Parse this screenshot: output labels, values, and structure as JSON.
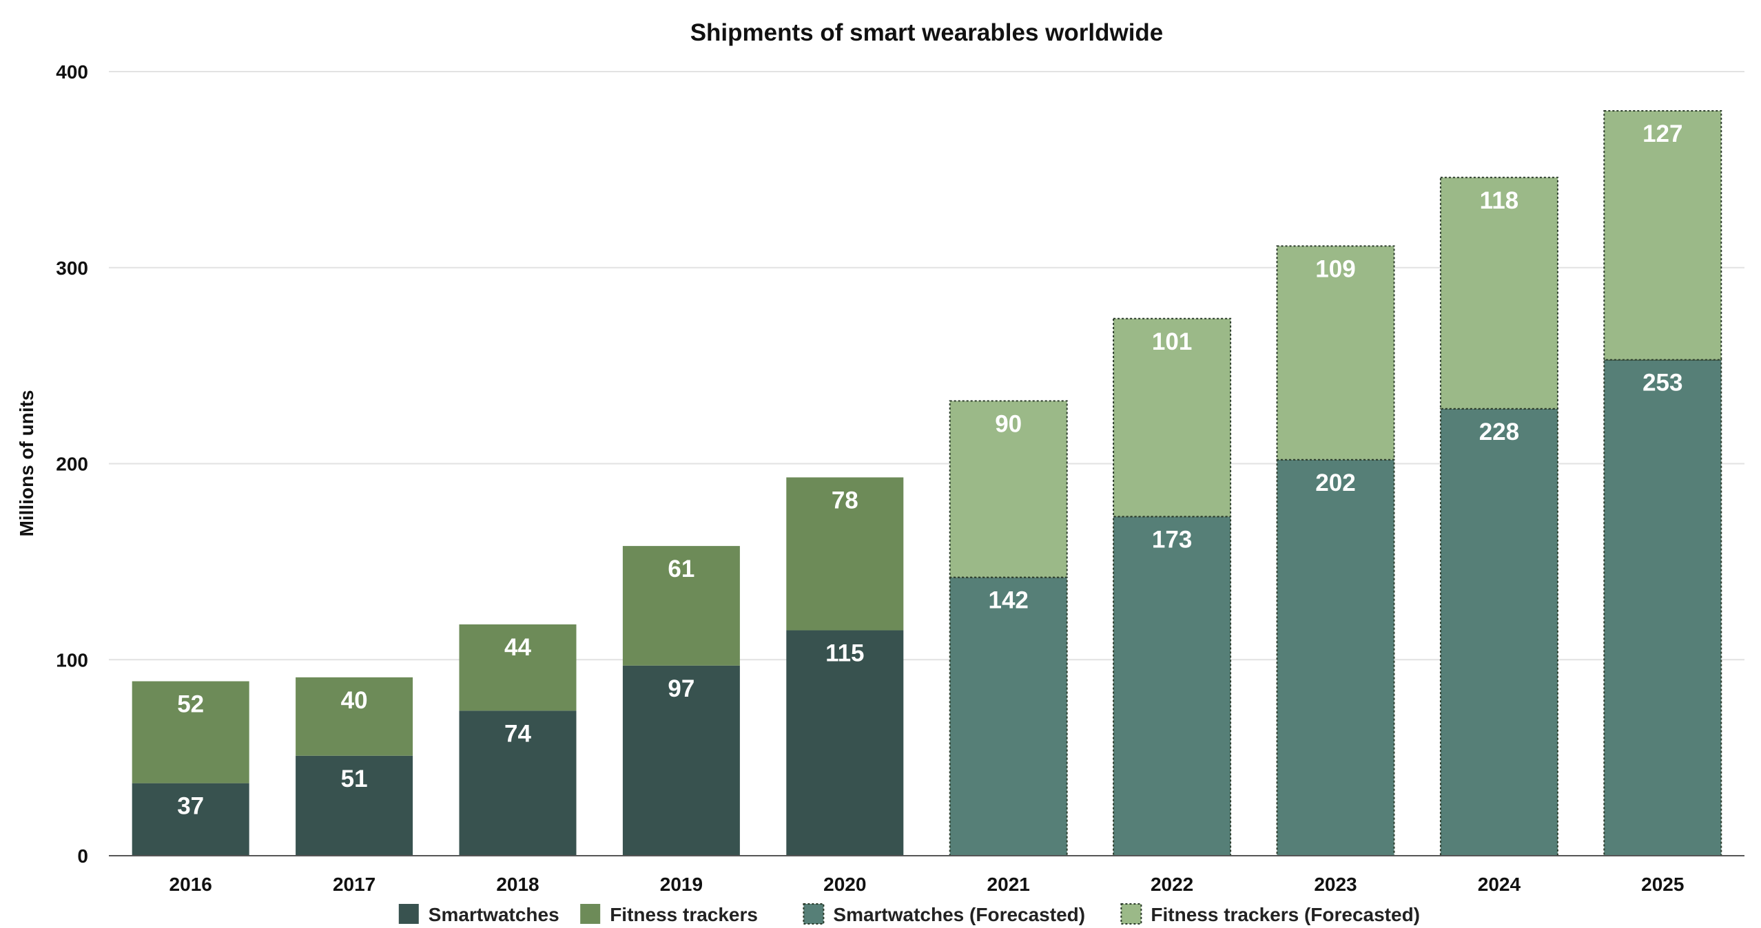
{
  "chart_data": {
    "type": "bar",
    "stacked": true,
    "title": "Shipments of smart wearables worldwide",
    "xlabel": "",
    "ylabel": "Millions of units",
    "ylim": [
      0,
      400
    ],
    "yticks": [
      0,
      100,
      200,
      300,
      400
    ],
    "grid": true,
    "legend_position": "bottom",
    "categories": [
      "2016",
      "2017",
      "2018",
      "2019",
      "2020",
      "2021",
      "2022",
      "2023",
      "2024",
      "2025"
    ],
    "series": [
      {
        "name": "Smartwatches",
        "color": "#38524f",
        "values": [
          37,
          51,
          74,
          97,
          115,
          null,
          null,
          null,
          null,
          null
        ]
      },
      {
        "name": "Fitness trackers",
        "color": "#6d8b58",
        "values": [
          52,
          40,
          44,
          61,
          78,
          null,
          null,
          null,
          null,
          null
        ]
      },
      {
        "name": "Smartwatches (Forecasted)",
        "color": "#567f77",
        "dashed": true,
        "values": [
          null,
          null,
          null,
          null,
          null,
          142,
          173,
          202,
          228,
          253
        ]
      },
      {
        "name": "Fitness trackers (Forecasted)",
        "color": "#9bb988",
        "dashed": true,
        "values": [
          null,
          null,
          null,
          null,
          null,
          90,
          101,
          109,
          118,
          127
        ]
      }
    ]
  }
}
